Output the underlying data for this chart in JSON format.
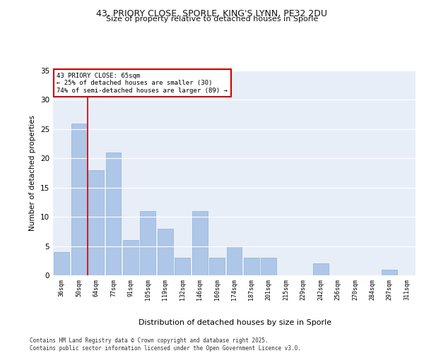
{
  "title_line1": "43, PRIORY CLOSE, SPORLE, KING'S LYNN, PE32 2DU",
  "title_line2": "Size of property relative to detached houses in Sporle",
  "xlabel": "Distribution of detached houses by size in Sporle",
  "ylabel": "Number of detached properties",
  "categories": [
    "36sqm",
    "50sqm",
    "64sqm",
    "77sqm",
    "91sqm",
    "105sqm",
    "119sqm",
    "132sqm",
    "146sqm",
    "160sqm",
    "174sqm",
    "187sqm",
    "201sqm",
    "215sqm",
    "229sqm",
    "242sqm",
    "256sqm",
    "270sqm",
    "284sqm",
    "297sqm",
    "311sqm"
  ],
  "values": [
    4,
    26,
    18,
    21,
    6,
    11,
    8,
    3,
    11,
    3,
    5,
    3,
    3,
    0,
    0,
    2,
    0,
    0,
    0,
    1,
    0
  ],
  "bar_color": "#aec6e8",
  "bar_edgecolor": "#8ab4d8",
  "background_color": "#e8eef8",
  "grid_color": "#ffffff",
  "vline_x": 2,
  "vline_color": "#cc0000",
  "annotation_text": "43 PRIORY CLOSE: 65sqm\n← 25% of detached houses are smaller (30)\n74% of semi-detached houses are larger (89) →",
  "annotation_box_color": "#cc0000",
  "footer_text": "Contains HM Land Registry data © Crown copyright and database right 2025.\nContains public sector information licensed under the Open Government Licence v3.0.",
  "ylim": [
    0,
    35
  ],
  "yticks": [
    0,
    5,
    10,
    15,
    20,
    25,
    30,
    35
  ]
}
